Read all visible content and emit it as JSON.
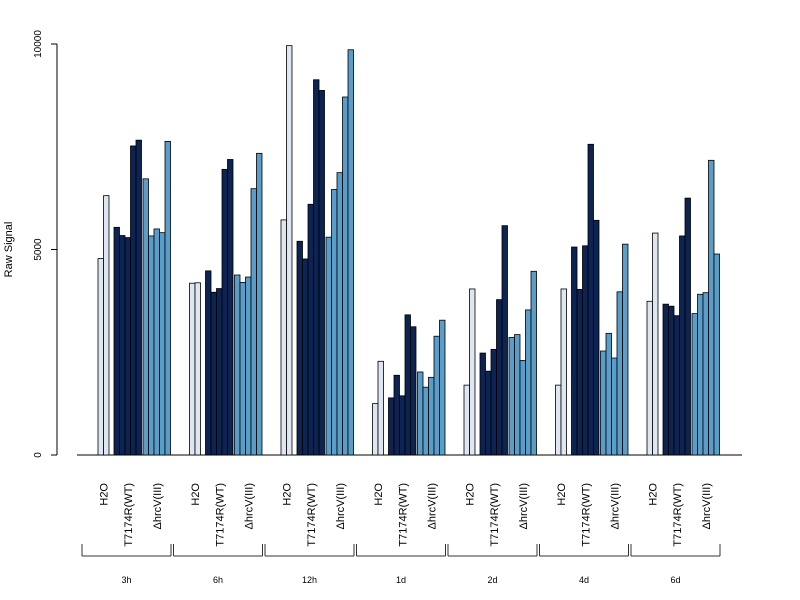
{
  "chart_data": {
    "type": "bar",
    "title": "",
    "ylabel": "Raw Signal",
    "ylim": [
      0,
      10000
    ],
    "yticks": [
      0,
      5000,
      10000
    ],
    "colors": {
      "H2O": "#dde6f1",
      "T7174R(WT)": "#0d2352",
      "ΔhrcV(III)": "#5a9dc8"
    },
    "group_labels": [
      "H2O",
      "T7174R(WT)",
      "ΔhrcV(III)"
    ],
    "timepoints": [
      {
        "label": "3h",
        "groups": [
          {
            "name": "H2O",
            "values": [
              4780,
              6310
            ]
          },
          {
            "name": "T7174R(WT)",
            "values": [
              5540,
              5340,
              5290,
              7520,
              7660
            ]
          },
          {
            "name": "ΔhrcV(III)",
            "values": [
              6720,
              5330,
              5500,
              5410,
              7630
            ]
          }
        ]
      },
      {
        "label": "6h",
        "groups": [
          {
            "name": "H2O",
            "values": [
              4180,
              4190
            ]
          },
          {
            "name": "T7174R(WT)",
            "values": [
              4480,
              3960,
              4050,
              6950,
              7190
            ]
          },
          {
            "name": "ΔhrcV(III)",
            "values": [
              4380,
              4200,
              4330,
              6480,
              7340
            ]
          }
        ]
      },
      {
        "label": "12h",
        "groups": [
          {
            "name": "H2O",
            "values": [
              5720,
              9960
            ]
          },
          {
            "name": "T7174R(WT)",
            "values": [
              5200,
              4770,
              6100,
              9130,
              8870
            ]
          },
          {
            "name": "ΔhrcV(III)",
            "values": [
              5300,
              6460,
              6870,
              8710,
              9860
            ]
          }
        ]
      },
      {
        "label": "1d",
        "groups": [
          {
            "name": "H2O",
            "values": [
              1250,
              2280
            ]
          },
          {
            "name": "T7174R(WT)",
            "values": [
              1390,
              1940,
              1440,
              3410,
              3120
            ]
          },
          {
            "name": "ΔhrcV(III)",
            "values": [
              2020,
              1650,
              1890,
              2890,
              3280
            ]
          }
        ]
      },
      {
        "label": "2d",
        "groups": [
          {
            "name": "H2O",
            "values": [
              1700,
              4040
            ]
          },
          {
            "name": "T7174R(WT)",
            "values": [
              2480,
              2040,
              2570,
              3780,
              5580
            ]
          },
          {
            "name": "ΔhrcV(III)",
            "values": [
              2860,
              2930,
              2300,
              3530,
              4470
            ]
          }
        ]
      },
      {
        "label": "4d",
        "groups": [
          {
            "name": "H2O",
            "values": [
              1700,
              4040
            ]
          },
          {
            "name": "T7174R(WT)",
            "values": [
              5060,
              4030,
              5090,
              7560,
              5710
            ]
          },
          {
            "name": "ΔhrcV(III)",
            "values": [
              2530,
              2960,
              2360,
              3970,
              5130
            ]
          }
        ]
      },
      {
        "label": "6d",
        "groups": [
          {
            "name": "H2O",
            "values": [
              3740,
              5400
            ]
          },
          {
            "name": "T7174R(WT)",
            "values": [
              3670,
              3620,
              3390,
              5330,
              6250
            ]
          },
          {
            "name": "ΔhrcV(III)",
            "values": [
              3440,
              3910,
              3950,
              7170,
              4890
            ]
          }
        ]
      }
    ]
  }
}
